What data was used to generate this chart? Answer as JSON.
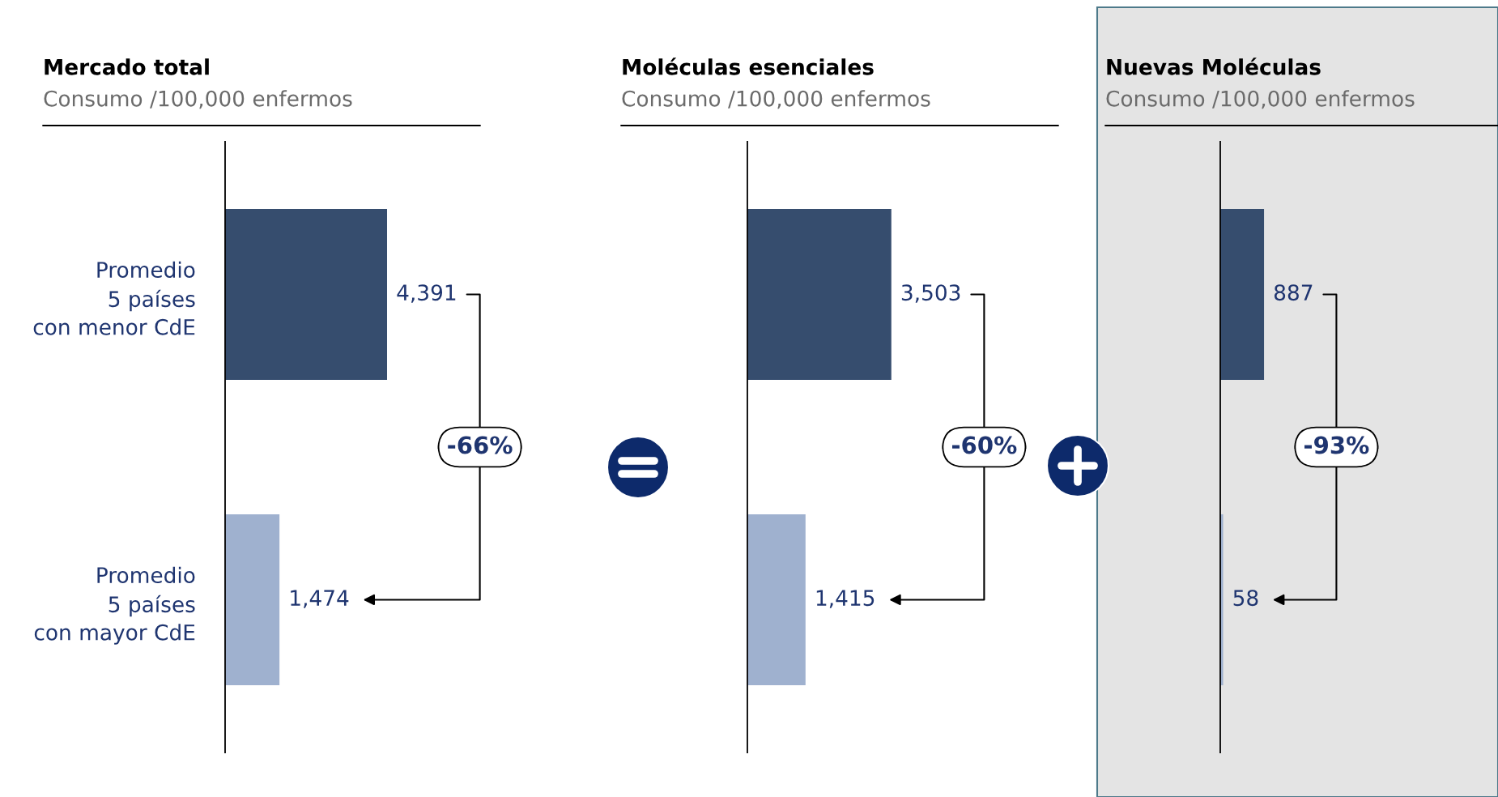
{
  "chart_data": [
    {
      "type": "bar",
      "orientation": "horizontal",
      "title": "Mercado total",
      "subtitle": "Consumo /100,000 enfermos",
      "categories": [
        "Promedio\n5 países\ncon menor CdE",
        "Promedio\n5 países\ncon mayor CdE"
      ],
      "values": [
        4391,
        1474
      ],
      "value_labels": [
        "4,391",
        "1,474"
      ],
      "colors": [
        "#364d6e",
        "#9fb1cf"
      ],
      "tick_labels": "y",
      "annotations": [
        "-66%"
      ]
    },
    {
      "type": "bar",
      "orientation": "horizontal",
      "title": "Moléculas esenciales",
      "subtitle": "Consumo /100,000 enfermos",
      "categories": [
        null,
        null
      ],
      "values": [
        3503,
        1415
      ],
      "value_labels": [
        "3,503",
        "1,415"
      ],
      "colors": [
        "#364d6e",
        "#9fb1cf"
      ],
      "tick_labels": false,
      "annotations": [
        "-60%"
      ]
    },
    {
      "type": "bar",
      "orientation": "horizontal",
      "title": "Nuevas Moléculas",
      "subtitle": "Consumo /100,000 enfermos",
      "categories": [
        null,
        null
      ],
      "values": [
        887,
        58
      ],
      "value_labels": [
        "887",
        "58"
      ],
      "colors": [
        "#364d6e",
        "#9fb1cf"
      ],
      "tick_labels": false,
      "annotations": [
        "-93%"
      ]
    }
  ]
}
